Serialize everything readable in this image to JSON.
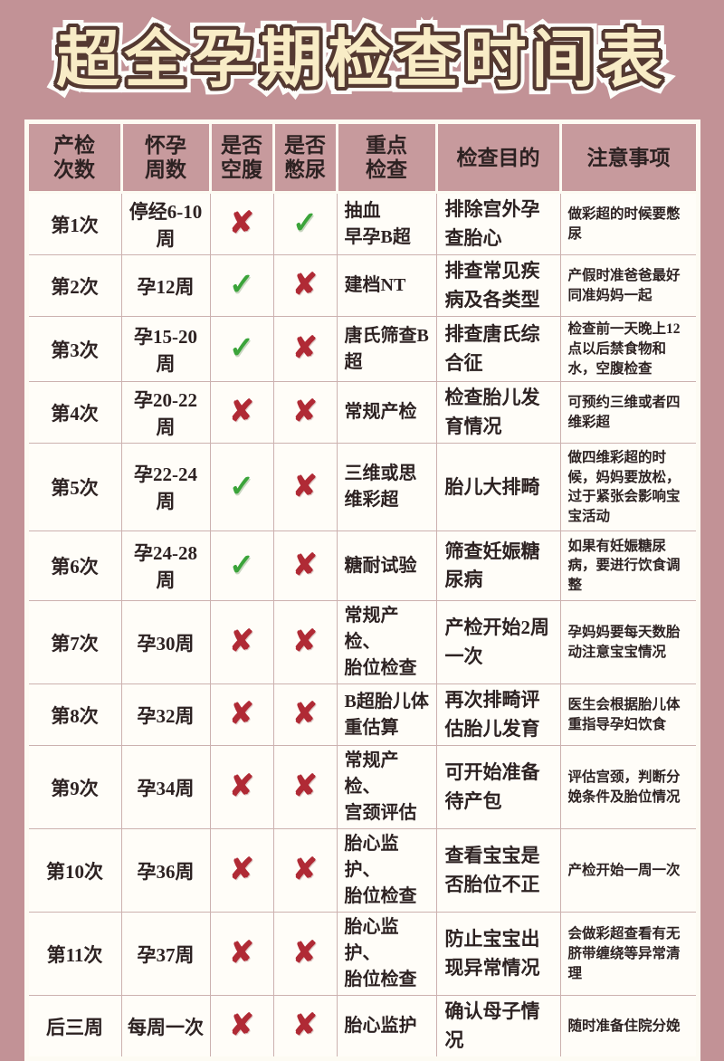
{
  "page": {
    "title": "超全孕期检查时间表"
  },
  "colors": {
    "background": "#c29296",
    "header_bg": "#c79a9d",
    "table_bg": "#fffdf8",
    "frame": "#fdfbf3",
    "grid_line": "#ccb1af",
    "text_dark": "#2d2222",
    "check_green": "#3ba43a",
    "cross_red": "#b02a35",
    "title_fill": "#f8ecc6",
    "title_outline": "#543931"
  },
  "icons": {
    "check": "✓",
    "cross": "✘"
  },
  "table": {
    "headers": [
      "产检\n次数",
      "怀孕\n周数",
      "是否\n空腹",
      "是否\n憋尿",
      "重点\n检查",
      "检查目的",
      "注意事项"
    ],
    "rows": [
      {
        "visit": "第1次",
        "weeks": "停经6-10周",
        "fasting": "✘",
        "bladder": "✓",
        "checks": "抽血\n早孕B超",
        "purpose": "排除宫外孕查胎心",
        "notes": "做彩超的时候要憋尿"
      },
      {
        "visit": "第2次",
        "weeks": "孕12周",
        "fasting": "✓",
        "bladder": "✘",
        "checks": "建档NT",
        "purpose": "排查常见疾病及各类型",
        "notes": "产假时准爸爸最好同准妈妈一起"
      },
      {
        "visit": "第3次",
        "weeks": "孕15-20周",
        "fasting": "✓",
        "bladder": "✘",
        "checks": "唐氏筛查B超",
        "purpose": "排查唐氏综合征",
        "notes": "检查前一天晚上12点以后禁食物和水，空腹检查"
      },
      {
        "visit": "第4次",
        "weeks": "孕20-22周",
        "fasting": "✘",
        "bladder": "✘",
        "checks": "常规产检",
        "purpose": "检查胎儿发育情况",
        "notes": "可预约三维或者四维彩超"
      },
      {
        "visit": "第5次",
        "weeks": "孕22-24周",
        "fasting": "✓",
        "bladder": "✘",
        "checks": "三维或思维彩超",
        "purpose": "胎儿大排畸",
        "notes": "做四维彩超的时候，妈妈要放松，过于紧张会影响宝宝活动"
      },
      {
        "visit": "第6次",
        "weeks": "孕24-28周",
        "fasting": "✓",
        "bladder": "✘",
        "checks": "糖耐试验",
        "purpose": "筛查妊娠糖尿病",
        "notes": "如果有妊娠糖尿病，要进行饮食调整"
      },
      {
        "visit": "第7次",
        "weeks": "孕30周",
        "fasting": "✘",
        "bladder": "✘",
        "checks": "常规产检、\n胎位检查",
        "purpose": "产检开始2周一次",
        "notes": "孕妈妈要每天数胎动注意宝宝情况"
      },
      {
        "visit": "第8次",
        "weeks": "孕32周",
        "fasting": "✘",
        "bladder": "✘",
        "checks": "B超胎儿体重估算",
        "purpose": "再次排畸评估胎儿发育",
        "notes": "医生会根据胎儿体重指导孕妇饮食"
      },
      {
        "visit": "第9次",
        "weeks": "孕34周",
        "fasting": "✘",
        "bladder": "✘",
        "checks": "常规产检、\n宫颈评估",
        "purpose": "可开始准备待产包",
        "notes": "评估宫颈，判断分娩条件及胎位情况"
      },
      {
        "visit": "第10次",
        "weeks": "孕36周",
        "fasting": "✘",
        "bladder": "✘",
        "checks": "胎心监护、\n胎位检查",
        "purpose": "查看宝宝是否胎位不正",
        "notes": "产检开始一周一次"
      },
      {
        "visit": "第11次",
        "weeks": "孕37周",
        "fasting": "✘",
        "bladder": "✘",
        "checks": "胎心监护、\n胎位检查",
        "purpose": "防止宝宝出现异常情况",
        "notes": "会做彩超查看有无脐带缠绕等异常清理"
      },
      {
        "visit": "后三周",
        "weeks": "每周一次",
        "fasting": "✘",
        "bladder": "✘",
        "checks": "胎心监护",
        "purpose": "确认母子情况",
        "notes": "随时准备住院分娩"
      }
    ]
  }
}
